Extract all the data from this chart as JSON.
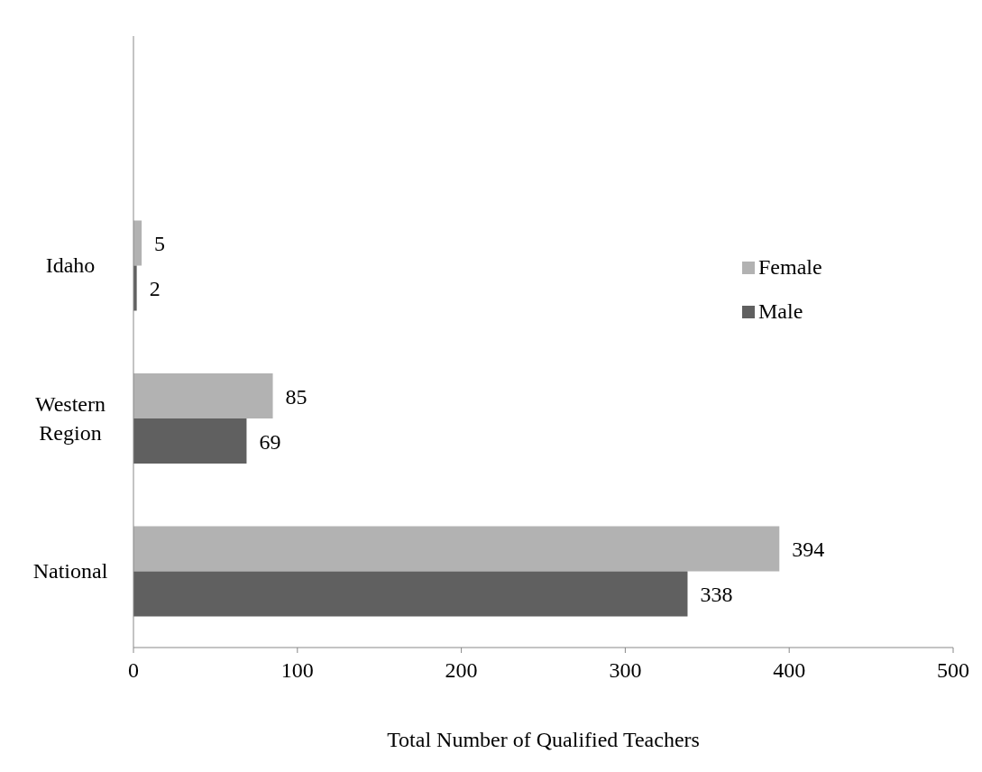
{
  "chart_data": {
    "type": "bar",
    "orientation": "horizontal",
    "xlabel": "Total Number of Qualified Teachers",
    "categories": [
      null,
      "Idaho",
      "Western Region",
      "National"
    ],
    "series": [
      {
        "name": "Female",
        "color": "#b2b2b2",
        "values": [
          null,
          5,
          85,
          394
        ]
      },
      {
        "name": "Male",
        "color": "#606060",
        "values": [
          null,
          2,
          69,
          338
        ]
      }
    ],
    "xlim": [
      0,
      500
    ],
    "xticks": [
      0,
      100,
      200,
      300,
      400,
      500
    ],
    "data_labels": true,
    "legend": "right",
    "grid": false
  }
}
